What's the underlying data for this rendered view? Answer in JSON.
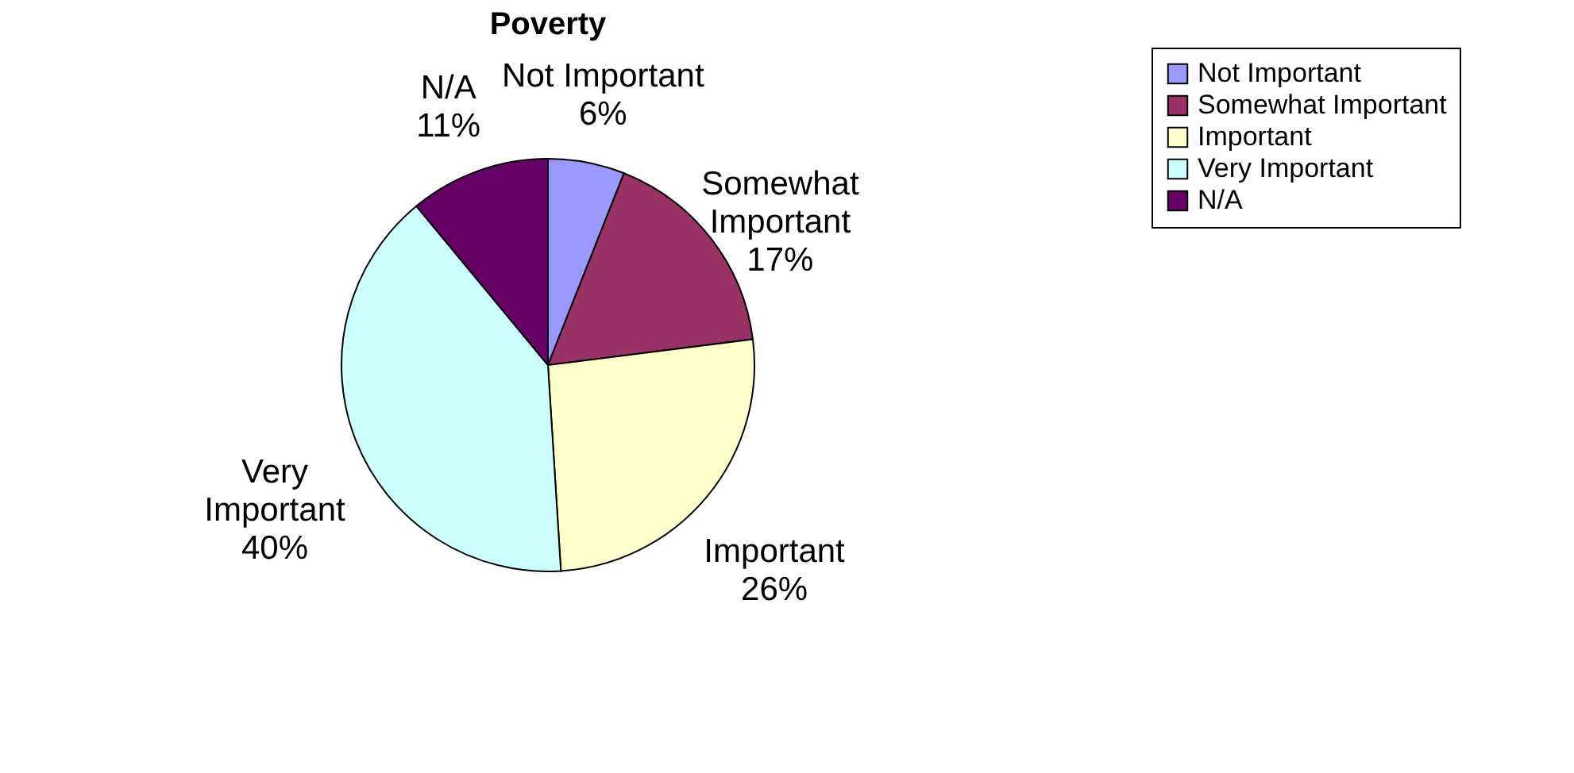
{
  "chart_data": {
    "type": "pie",
    "title": "Poverty",
    "categories": [
      "Not Important",
      "Somewhat Important",
      "Important",
      "Very Important",
      "N/A"
    ],
    "values": [
      6,
      17,
      26,
      40,
      11
    ],
    "value_labels": [
      "6%",
      "17%",
      "26%",
      "40%",
      "11%"
    ],
    "colors": [
      "#9999ff",
      "#993366",
      "#ffffcc",
      "#ccffff",
      "#660066"
    ],
    "legend": "right"
  }
}
